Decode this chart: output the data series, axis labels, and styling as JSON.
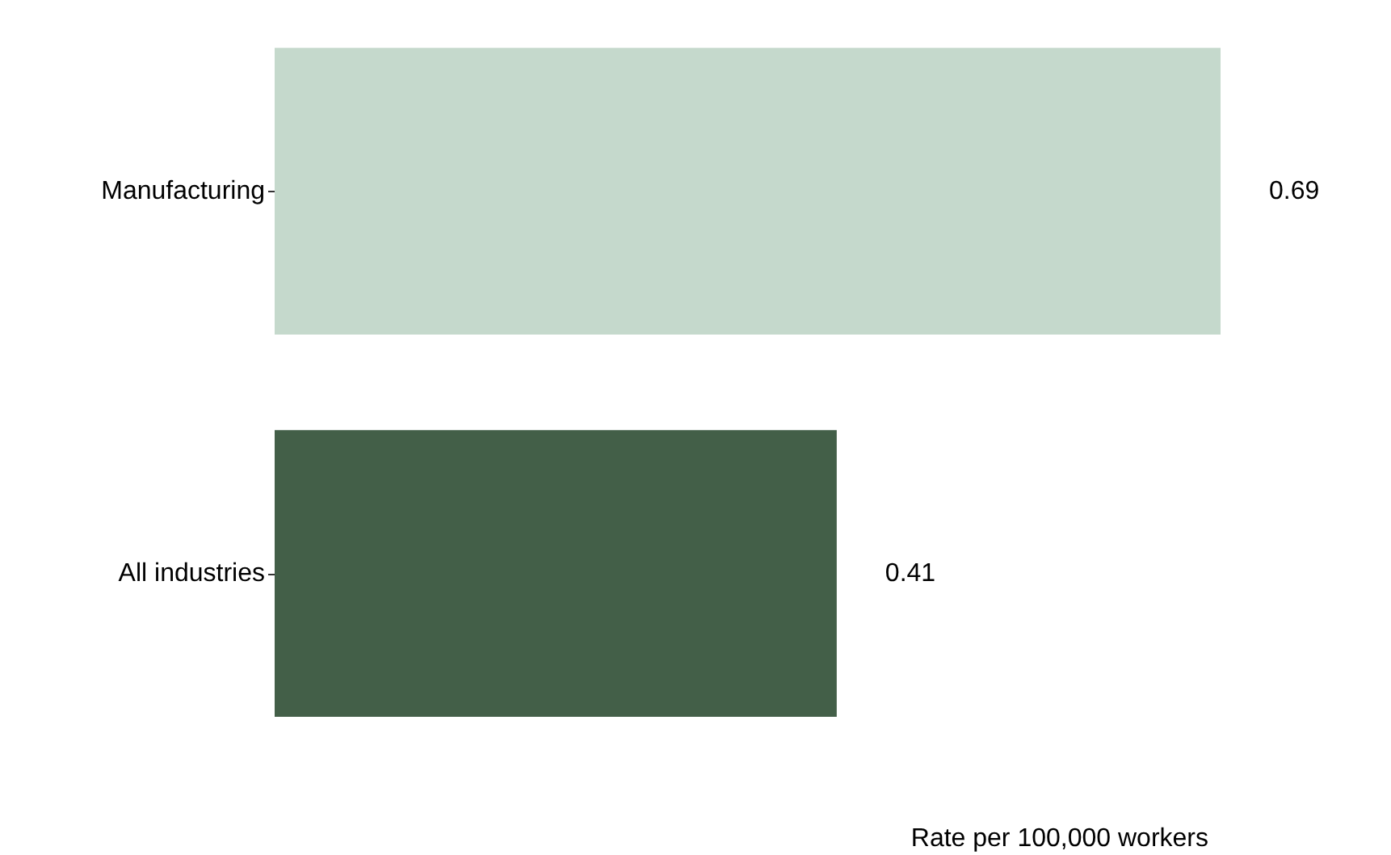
{
  "chart_data": {
    "type": "bar",
    "orientation": "horizontal",
    "xlabel": "Rate per 100,000 workers",
    "categories": [
      "Manufacturing",
      "All industries"
    ],
    "values": [
      0.69,
      0.41
    ],
    "colors": [
      "#c5d9cc",
      "#435f48"
    ],
    "data_labels": true
  }
}
